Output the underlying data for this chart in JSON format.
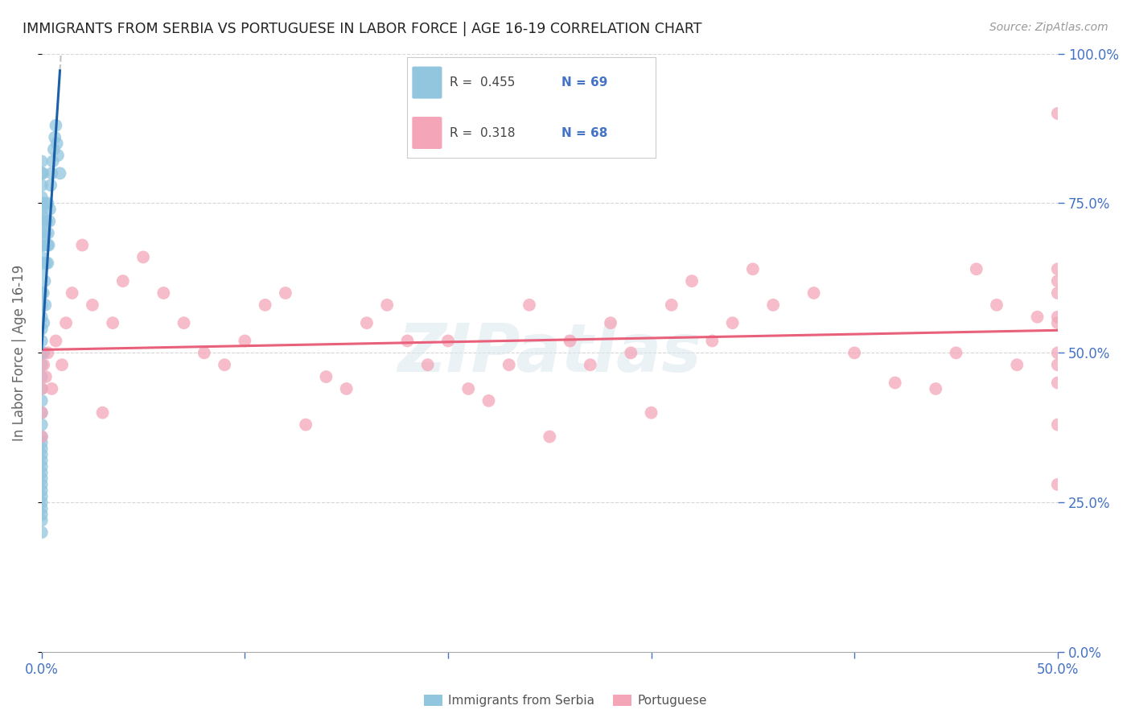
{
  "title": "IMMIGRANTS FROM SERBIA VS PORTUGUESE IN LABOR FORCE | AGE 16-19 CORRELATION CHART",
  "source": "Source: ZipAtlas.com",
  "ylabel": "In Labor Force | Age 16-19",
  "legend_label1": "Immigrants from Serbia",
  "legend_label2": "Portuguese",
  "legend_r1": "R =  0.455",
  "legend_n1": "N = 69",
  "legend_r2": "R =  0.318",
  "legend_n2": "N = 68",
  "xlim": [
    0.0,
    0.5
  ],
  "ylim": [
    0.0,
    1.0
  ],
  "color_blue": "#92c5de",
  "color_pink": "#f4a6b8",
  "color_blue_line": "#1a5fa8",
  "color_pink_line": "#e8607a",
  "color_axis_labels": "#4472c4",
  "watermark": "ZIPatlas",
  "blue_x": [
    0.0,
    0.0,
    0.0,
    0.0,
    0.0,
    0.0,
    0.0,
    0.0,
    0.0,
    0.0,
    0.0,
    0.0,
    0.0,
    0.0,
    0.0,
    0.0,
    0.0,
    0.0,
    0.0,
    0.0,
    0.0,
    0.0,
    0.0,
    0.0,
    0.0,
    0.0,
    0.0,
    0.0,
    0.0,
    0.0,
    0.0,
    0.0,
    0.0,
    0.0,
    0.0,
    0.0,
    0.0,
    0.0,
    0.0,
    0.0,
    0.0005,
    0.0005,
    0.0008,
    0.001,
    0.001,
    0.001,
    0.0012,
    0.0015,
    0.0015,
    0.0018,
    0.002,
    0.0022,
    0.0025,
    0.0028,
    0.003,
    0.003,
    0.0032,
    0.0035,
    0.0038,
    0.004,
    0.0045,
    0.005,
    0.0055,
    0.006,
    0.0065,
    0.007,
    0.0075,
    0.008,
    0.009
  ],
  "blue_y": [
    0.82,
    0.8,
    0.78,
    0.76,
    0.75,
    0.74,
    0.73,
    0.72,
    0.7,
    0.68,
    0.66,
    0.64,
    0.6,
    0.58,
    0.56,
    0.54,
    0.52,
    0.5,
    0.48,
    0.46,
    0.44,
    0.42,
    0.4,
    0.38,
    0.36,
    0.35,
    0.34,
    0.33,
    0.32,
    0.31,
    0.3,
    0.29,
    0.28,
    0.27,
    0.26,
    0.25,
    0.24,
    0.23,
    0.22,
    0.2,
    0.8,
    0.65,
    0.6,
    0.72,
    0.55,
    0.5,
    0.68,
    0.75,
    0.62,
    0.58,
    0.7,
    0.65,
    0.72,
    0.68,
    0.75,
    0.65,
    0.7,
    0.68,
    0.72,
    0.74,
    0.78,
    0.8,
    0.82,
    0.84,
    0.86,
    0.88,
    0.85,
    0.83,
    0.8
  ],
  "pink_x": [
    0.0,
    0.0,
    0.0,
    0.001,
    0.002,
    0.003,
    0.005,
    0.007,
    0.01,
    0.012,
    0.015,
    0.02,
    0.025,
    0.03,
    0.035,
    0.04,
    0.05,
    0.06,
    0.07,
    0.08,
    0.09,
    0.1,
    0.11,
    0.12,
    0.13,
    0.14,
    0.15,
    0.16,
    0.17,
    0.18,
    0.19,
    0.2,
    0.21,
    0.22,
    0.23,
    0.24,
    0.25,
    0.26,
    0.27,
    0.28,
    0.29,
    0.3,
    0.31,
    0.32,
    0.33,
    0.34,
    0.35,
    0.36,
    0.38,
    0.4,
    0.42,
    0.44,
    0.45,
    0.46,
    0.47,
    0.48,
    0.49,
    0.5,
    0.5,
    0.5,
    0.5,
    0.5,
    0.5,
    0.5,
    0.5,
    0.5,
    0.5,
    0.5
  ],
  "pink_y": [
    0.44,
    0.4,
    0.36,
    0.48,
    0.46,
    0.5,
    0.44,
    0.52,
    0.48,
    0.55,
    0.6,
    0.68,
    0.58,
    0.4,
    0.55,
    0.62,
    0.66,
    0.6,
    0.55,
    0.5,
    0.48,
    0.52,
    0.58,
    0.6,
    0.38,
    0.46,
    0.44,
    0.55,
    0.58,
    0.52,
    0.48,
    0.52,
    0.44,
    0.42,
    0.48,
    0.58,
    0.36,
    0.52,
    0.48,
    0.55,
    0.5,
    0.4,
    0.58,
    0.62,
    0.52,
    0.55,
    0.64,
    0.58,
    0.6,
    0.5,
    0.45,
    0.44,
    0.5,
    0.64,
    0.58,
    0.48,
    0.56,
    0.6,
    0.64,
    0.55,
    0.45,
    0.38,
    0.28,
    0.48,
    0.56,
    0.62,
    0.5,
    0.9
  ]
}
